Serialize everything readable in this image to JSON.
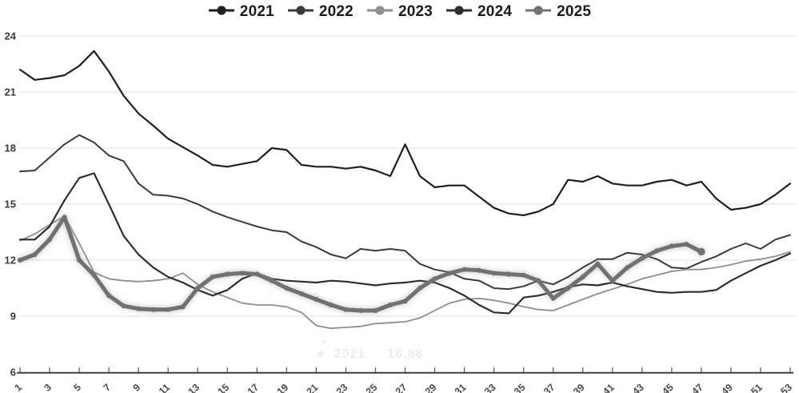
{
  "chart_data": {
    "type": "line",
    "title": "",
    "xlabel": "",
    "ylabel": "",
    "xlim": [
      1,
      53
    ],
    "ylim": [
      6,
      24
    ],
    "xticks": [
      1,
      3,
      5,
      7,
      9,
      11,
      13,
      15,
      17,
      19,
      21,
      23,
      25,
      27,
      29,
      31,
      33,
      35,
      37,
      39,
      41,
      43,
      45,
      47,
      49,
      51,
      53
    ],
    "yticks": [
      6,
      9,
      12,
      15,
      18,
      21,
      24
    ],
    "grid": "horizontal",
    "legend_position": "top-center",
    "x_unit": "week",
    "series": [
      {
        "name": "2021",
        "color": "#1f1f1f",
        "width": 2.2,
        "markers": false,
        "glow": false,
        "x_start": 1,
        "values": [
          22.2,
          21.65,
          21.75,
          21.9,
          22.4,
          23.2,
          22.1,
          20.8,
          19.85,
          19.2,
          18.5,
          18.05,
          17.6,
          17.1,
          17.0,
          17.15,
          17.3,
          18.0,
          17.9,
          17.1,
          17.0,
          17.0,
          16.9,
          17.0,
          16.8,
          16.5,
          18.2,
          16.5,
          15.9,
          16.0,
          16.0,
          15.4,
          14.8,
          14.5,
          14.4,
          14.6,
          15.0,
          16.3,
          16.2,
          16.5,
          16.1,
          16.0,
          16.0,
          16.2,
          16.3,
          16.0,
          16.2,
          15.3,
          14.7,
          14.8,
          15.0,
          15.5,
          16.1
        ]
      },
      {
        "name": "2022",
        "color": "#3a3a3a",
        "width": 2.0,
        "markers": false,
        "glow": false,
        "x_start": 1,
        "values": [
          16.75,
          16.8,
          17.5,
          18.2,
          18.7,
          18.3,
          17.6,
          17.3,
          16.1,
          15.5,
          15.45,
          15.3,
          15.0,
          14.6,
          14.3,
          14.05,
          13.8,
          13.6,
          13.5,
          13.0,
          12.7,
          12.3,
          12.1,
          12.6,
          12.5,
          12.6,
          12.5,
          11.8,
          11.5,
          11.35,
          11.0,
          10.9,
          10.5,
          10.45,
          10.6,
          10.9,
          10.7,
          11.1,
          11.6,
          12.05,
          12.05,
          12.4,
          12.3,
          12.05,
          11.6,
          11.55,
          11.9,
          12.2,
          12.6,
          12.9,
          12.6,
          13.1,
          13.35
        ]
      },
      {
        "name": "2023",
        "color": "#8e8e8e",
        "width": 1.8,
        "markers": false,
        "glow": false,
        "x_start": 1,
        "values": [
          13.05,
          13.4,
          13.9,
          14.35,
          12.9,
          11.35,
          11.0,
          10.9,
          10.85,
          10.9,
          11.0,
          11.3,
          10.7,
          10.3,
          10.0,
          9.7,
          9.6,
          9.6,
          9.5,
          9.2,
          8.5,
          8.35,
          8.4,
          8.45,
          8.6,
          8.65,
          8.7,
          8.9,
          9.3,
          9.7,
          9.9,
          9.95,
          9.85,
          9.7,
          9.5,
          9.35,
          9.3,
          9.6,
          9.9,
          10.2,
          10.45,
          10.7,
          11.0,
          11.2,
          11.4,
          11.5,
          11.5,
          11.6,
          11.75,
          11.95,
          12.05,
          12.2,
          12.45
        ]
      },
      {
        "name": "2024",
        "color": "#2d2d2d",
        "width": 2.2,
        "markers": false,
        "glow": false,
        "x_start": 1,
        "values": [
          13.1,
          13.1,
          13.8,
          15.2,
          16.4,
          16.65,
          15.0,
          13.3,
          12.3,
          11.6,
          11.1,
          10.8,
          10.4,
          10.1,
          10.4,
          11.0,
          11.3,
          11.0,
          10.9,
          10.85,
          10.8,
          10.9,
          10.85,
          10.75,
          10.65,
          10.75,
          10.8,
          10.9,
          10.8,
          10.5,
          10.1,
          9.6,
          9.2,
          9.15,
          10.0,
          10.1,
          10.3,
          10.55,
          10.7,
          10.65,
          10.8,
          10.6,
          10.45,
          10.3,
          10.25,
          10.3,
          10.3,
          10.4,
          10.9,
          11.3,
          11.7,
          12.0,
          12.35
        ]
      },
      {
        "name": "2025",
        "color": "#717171",
        "width": 5.0,
        "markers": true,
        "glow": true,
        "x_start": 1,
        "values": [
          12.0,
          12.3,
          13.1,
          14.3,
          12.0,
          11.2,
          10.1,
          9.55,
          9.4,
          9.35,
          9.35,
          9.5,
          10.5,
          11.1,
          11.25,
          11.3,
          11.25,
          10.9,
          10.5,
          10.2,
          9.9,
          9.6,
          9.35,
          9.3,
          9.3,
          9.6,
          9.8,
          10.5,
          11.0,
          11.3,
          11.5,
          11.45,
          11.3,
          11.25,
          11.2,
          10.9,
          9.95,
          10.5,
          11.1,
          11.8,
          10.9,
          11.6,
          12.1,
          12.5,
          12.75,
          12.85,
          12.45
        ]
      }
    ]
  },
  "legend": {
    "items": [
      {
        "label": "2021"
      },
      {
        "label": "2022"
      },
      {
        "label": "2023"
      },
      {
        "label": "2024"
      },
      {
        "label": "2025"
      }
    ]
  },
  "ghost_tooltip": {
    "dot": "●",
    "series": "2021",
    "value": "16,88",
    "text": "●  2021     16,88"
  },
  "style": {
    "grid_color": "#e3e3e3",
    "axis_color": "#3f3f3f",
    "tick_color": "#555555",
    "ytick_color": "#3c3c3c",
    "xtick_color": "#4d4d4d",
    "background": "#ffffff"
  }
}
